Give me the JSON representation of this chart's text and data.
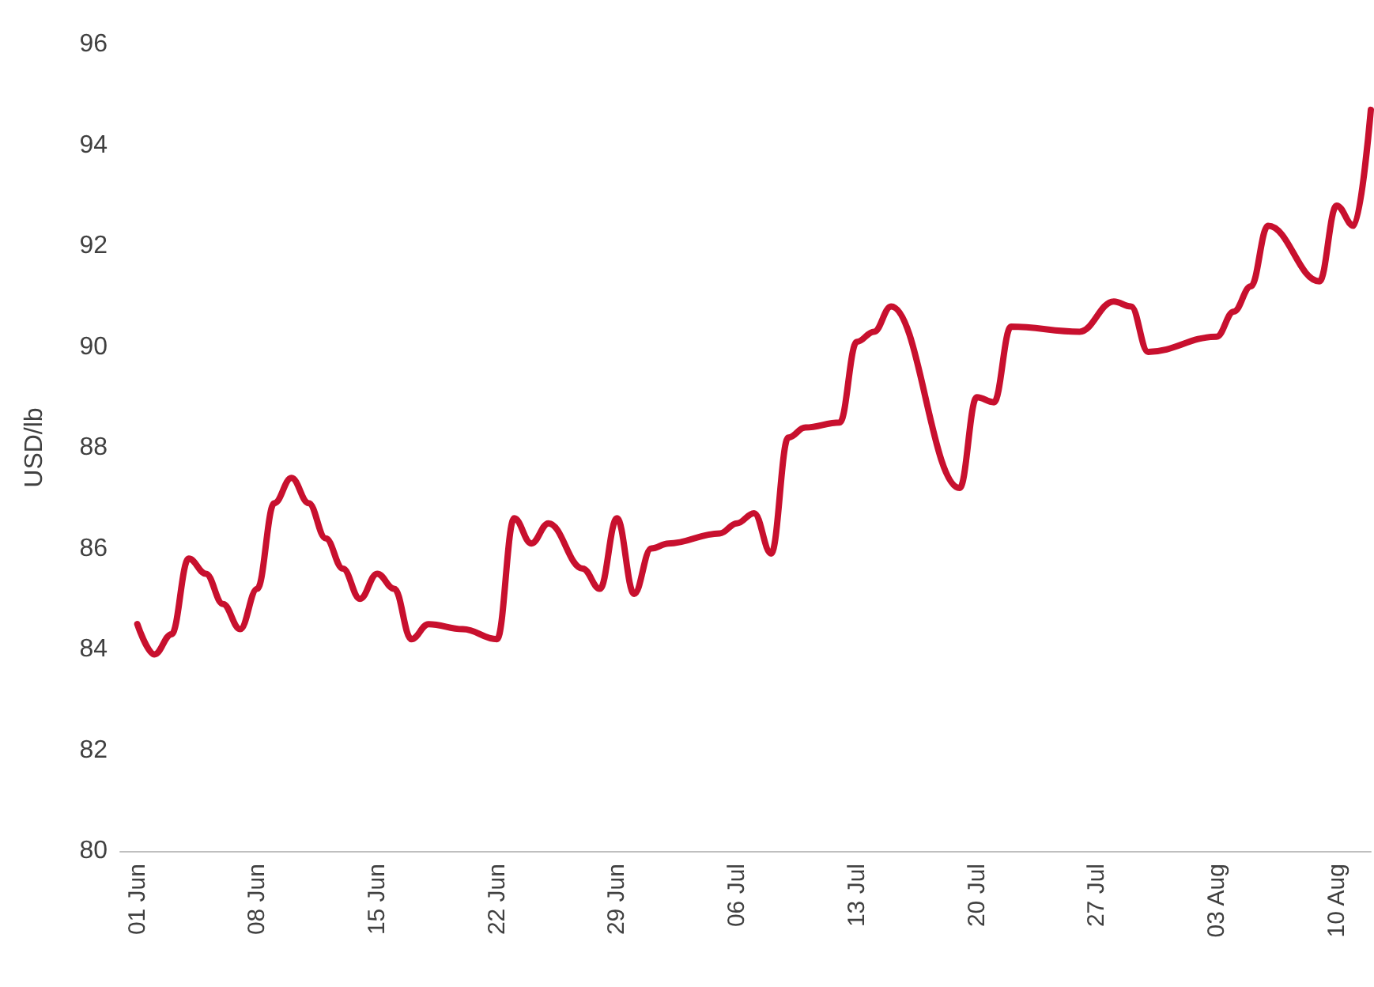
{
  "chart_data": {
    "type": "line",
    "ylabel": "USD/lb",
    "color": "#c8102e",
    "line_style": "solid",
    "marker": "none",
    "grid": false,
    "x": [
      "--06-01",
      "--06-02",
      "--06-03",
      "--06-04",
      "--06-05",
      "--06-06",
      "--06-07",
      "--06-08",
      "--06-09",
      "--06-10",
      "--06-11",
      "--06-12",
      "--06-13",
      "--06-14",
      "--06-15",
      "--06-16",
      "--06-17",
      "--06-18",
      "--06-20",
      "--06-22",
      "--06-23",
      "--06-24",
      "--06-25",
      "--06-27",
      "--06-28",
      "--06-29",
      "--06-30",
      "--07-01",
      "--07-02",
      "--07-05",
      "--07-06",
      "--07-07",
      "--07-08",
      "--07-09",
      "--07-10",
      "--07-12",
      "--07-13",
      "--07-14",
      "--07-15",
      "--07-19",
      "--07-20",
      "--07-21",
      "--07-22",
      "--07-26",
      "--07-28",
      "--07-29",
      "--07-30",
      "--08-03",
      "--08-04",
      "--08-05",
      "--08-06",
      "--08-09",
      "--08-10",
      "--08-11",
      "--08-12"
    ],
    "values": [
      84.5,
      83.9,
      84.3,
      85.8,
      85.5,
      84.9,
      84.4,
      85.2,
      86.9,
      87.4,
      86.9,
      86.2,
      85.6,
      85.0,
      85.5,
      85.2,
      84.2,
      84.5,
      84.4,
      84.2,
      86.6,
      86.1,
      86.5,
      85.6,
      85.2,
      86.6,
      85.1,
      86.0,
      86.1,
      86.3,
      86.5,
      86.7,
      85.9,
      88.2,
      88.4,
      88.5,
      90.1,
      90.3,
      90.8,
      87.2,
      89.0,
      88.9,
      90.4,
      90.3,
      90.9,
      90.8,
      89.9,
      90.2,
      90.7,
      91.2,
      92.4,
      91.3,
      92.8,
      92.4,
      94.7
    ],
    "xlim": [
      "--05-31",
      "--08-12"
    ],
    "xticks": [
      {
        "value": "--06-01",
        "label": "01 Jun"
      },
      {
        "value": "--06-08",
        "label": "08 Jun"
      },
      {
        "value": "--06-15",
        "label": "15 Jun"
      },
      {
        "value": "--06-22",
        "label": "22 Jun"
      },
      {
        "value": "--06-29",
        "label": "29 Jun"
      },
      {
        "value": "--07-06",
        "label": "06 Jul"
      },
      {
        "value": "--07-13",
        "label": "13 Jul"
      },
      {
        "value": "--07-20",
        "label": "20 Jul"
      },
      {
        "value": "--07-27",
        "label": "27 Jul"
      },
      {
        "value": "--08-03",
        "label": "03 Aug"
      },
      {
        "value": "--08-10",
        "label": "10 Aug"
      }
    ],
    "ylim": [
      80,
      96
    ],
    "yticks": [
      80,
      82,
      84,
      86,
      88,
      90,
      92,
      94,
      96
    ]
  }
}
